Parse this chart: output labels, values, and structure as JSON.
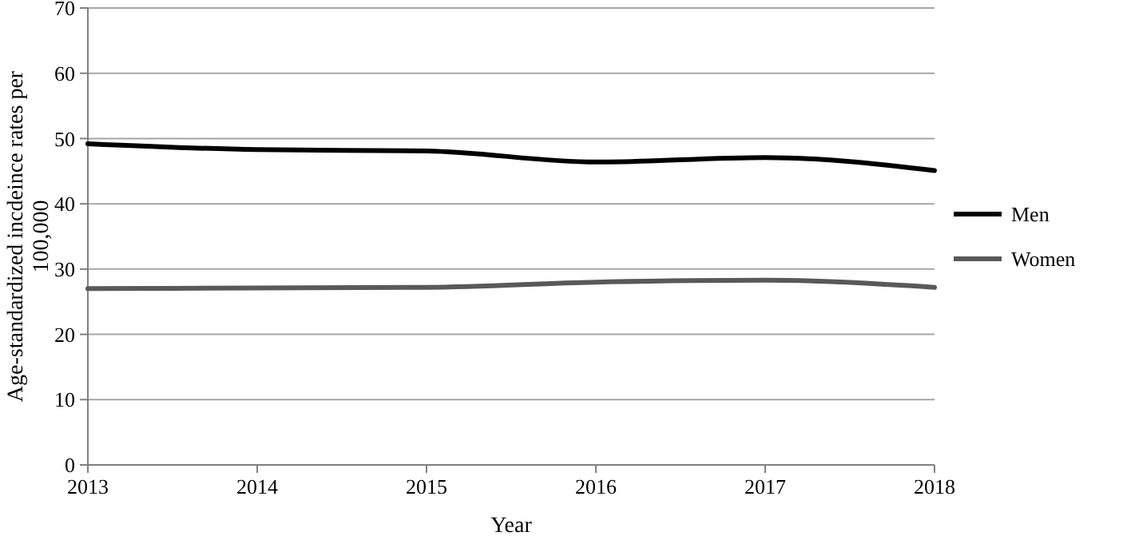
{
  "chart_data": {
    "type": "line",
    "xlabel": "Year",
    "ylabel": "Age-standardized incdeince rates per 100,000",
    "x": [
      2013,
      2014,
      2015,
      2016,
      2017,
      2018
    ],
    "xlim": [
      2013,
      2018
    ],
    "xticks": [
      2013,
      2014,
      2015,
      2016,
      2017,
      2018
    ],
    "ylim": [
      0,
      70
    ],
    "yticks": [
      0,
      10,
      20,
      30,
      40,
      50,
      60,
      70
    ],
    "grid": "y",
    "legend": "right",
    "marker": "none",
    "line_style": "solid",
    "series": [
      {
        "name": "Men",
        "color": "#000000",
        "values": [
          49.2,
          48.3,
          48.1,
          46.4,
          47.1,
          45.1
        ]
      },
      {
        "name": "Women",
        "color": "#595959",
        "values": [
          27.0,
          27.1,
          27.2,
          28.0,
          28.3,
          27.2
        ]
      }
    ]
  }
}
